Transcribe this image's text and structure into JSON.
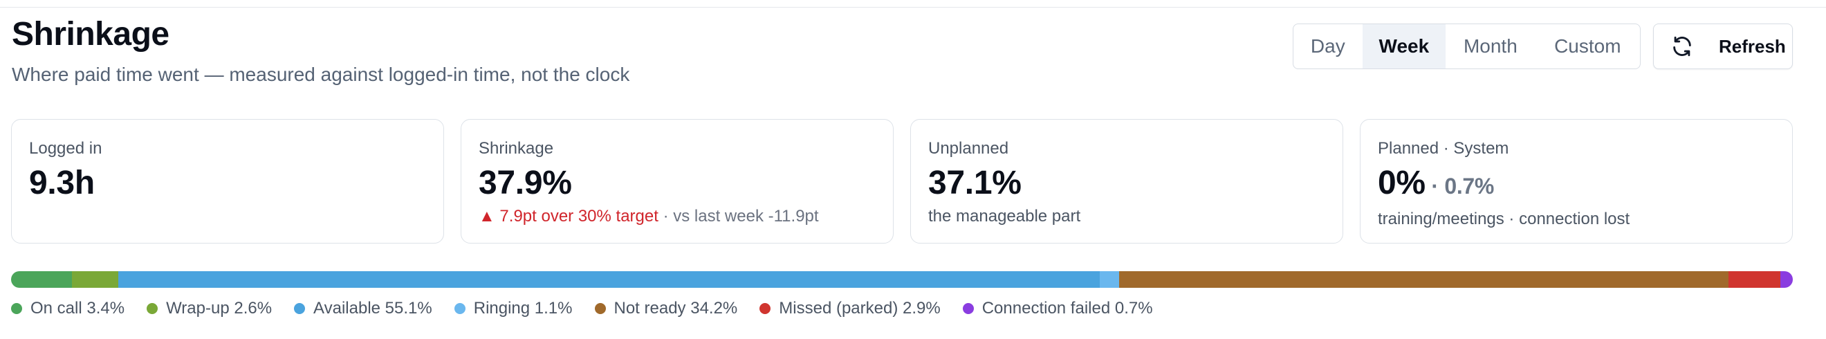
{
  "header": {
    "title": "Shrinkage",
    "subtitle": "Where paid time went — measured against logged-in time, not the clock"
  },
  "period_tabs": {
    "day": "Day",
    "week": "Week",
    "month": "Month",
    "custom": "Custom",
    "selected": "Week"
  },
  "refresh": {
    "label": "Refresh",
    "icon": "refresh-icon"
  },
  "cards": {
    "logged_in": {
      "label": "Logged in",
      "value": "9.3h"
    },
    "shrinkage": {
      "label": "Shrinkage",
      "value": "37.9%",
      "delta": "▲ 7.9pt over 30% target",
      "compare": " · vs last week -11.9pt"
    },
    "unplanned": {
      "label": "Unplanned",
      "value": "37.1%",
      "note": "the manageable part"
    },
    "planned_system": {
      "label": "Planned · System",
      "value": "0%",
      "value_secondary": " · 0.7%",
      "note": "training/meetings · connection lost"
    }
  },
  "breakdown": [
    {
      "label": "On call 3.4%",
      "percent": 3.4,
      "color": "#4ba55a"
    },
    {
      "label": "Wrap-up 2.6%",
      "percent": 2.6,
      "color": "#7aa837"
    },
    {
      "label": "Available 55.1%",
      "percent": 55.1,
      "color": "#4aa3de"
    },
    {
      "label": "Ringing 1.1%",
      "percent": 1.1,
      "color": "#6ab7ee"
    },
    {
      "label": "Not ready 34.2%",
      "percent": 34.2,
      "color": "#a0692b"
    },
    {
      "label": "Missed (parked) 2.9%",
      "percent": 2.9,
      "color": "#d0352f"
    },
    {
      "label": "Connection failed 0.7%",
      "percent": 0.7,
      "color": "#8a3de0"
    }
  ],
  "colors": {
    "warning": "#d0252b",
    "active_tab_bg": "#eef2f7"
  }
}
